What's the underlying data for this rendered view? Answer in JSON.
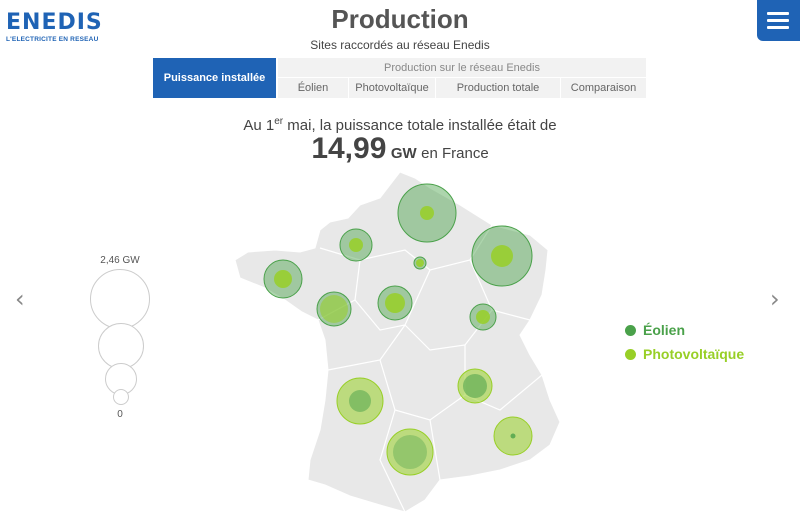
{
  "brand": {
    "name": "ENEDIS",
    "tagline": "L'ELECTRICITE EN RESEAU"
  },
  "header": {
    "title": "Production",
    "subtitle": "Sites raccordés au réseau Enedis"
  },
  "tabs": {
    "active": "Puissance installée",
    "group_label": "Production sur le réseau Enedis",
    "items": [
      "Éolien",
      "Photovoltaïque",
      "Production totale",
      "Comparaison"
    ]
  },
  "summary": {
    "prefix": "Au 1",
    "sup": "er",
    "suffix": " mai, la puissance totale installée était de",
    "value": "14,99",
    "unit": "GW",
    "location": "en France"
  },
  "size_legend": {
    "max_label": "2,46 GW",
    "min_label": "0"
  },
  "series": [
    {
      "name": "Éolien",
      "color": "#4aa14a"
    },
    {
      "name": "Photovoltaïque",
      "color": "#98cf27"
    }
  ],
  "colors": {
    "accent": "#1f63b5",
    "eolien": "#4aa14a",
    "photovoltaique": "#98cf27",
    "map_fill": "#e8e8e8"
  },
  "icons": {
    "menu": "hamburger-icon",
    "prev": "chevron-left-icon",
    "next": "chevron-right-icon"
  }
}
